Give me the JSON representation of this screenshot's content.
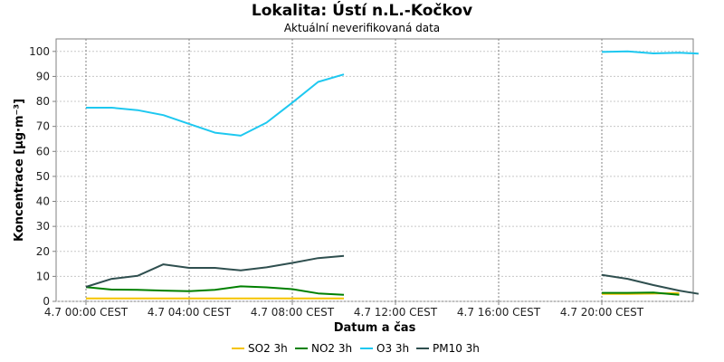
{
  "chart_data": {
    "type": "line",
    "title": "Lokalita: Ústí n.L.-Kočkov",
    "subtitle": "Aktuální neverifikovaná data",
    "xlabel": "Datum a čas",
    "ylabel": "Koncentrace [µg·m⁻³]",
    "ylim": [
      0,
      105
    ],
    "xlim": [
      -0.5,
      23.75
    ],
    "yticks": [
      0,
      10,
      20,
      30,
      40,
      50,
      60,
      70,
      80,
      90,
      100
    ],
    "xticks": [
      {
        "hour": 0,
        "label": "4.7 00:00 CEST"
      },
      {
        "hour": 4,
        "label": "4.7 04:00 CEST"
      },
      {
        "hour": 8,
        "label": "4.7 08:00 CEST"
      },
      {
        "hour": 12,
        "label": "4.7 12:00 CEST"
      },
      {
        "hour": 16,
        "label": "4.7 16:00 CEST"
      },
      {
        "hour": 20,
        "label": "4.7 20:00 CEST"
      }
    ],
    "grid": true,
    "legend_position": "bottom",
    "series": [
      {
        "name": "SO2 3h",
        "color": "#f5c400",
        "segments": [
          [
            [
              0,
              1.2
            ],
            [
              1,
              1.2
            ],
            [
              2,
              1.2
            ],
            [
              3,
              1.2
            ],
            [
              4,
              1.2
            ],
            [
              5,
              1.2
            ],
            [
              6,
              1.2
            ],
            [
              7,
              1.2
            ],
            [
              8,
              1.2
            ],
            [
              9,
              1.2
            ],
            [
              10,
              1.2
            ]
          ],
          [
            [
              20,
              3.0
            ],
            [
              21,
              3.0
            ],
            [
              22,
              3.1
            ],
            [
              23,
              3.3
            ]
          ]
        ]
      },
      {
        "name": "NO2 3h",
        "color": "#008000",
        "segments": [
          [
            [
              0,
              5.7
            ],
            [
              1,
              4.7
            ],
            [
              2,
              4.6
            ],
            [
              3,
              4.3
            ],
            [
              4,
              4.1
            ],
            [
              5,
              4.6
            ],
            [
              6,
              6.0
            ],
            [
              7,
              5.6
            ],
            [
              8,
              4.9
            ],
            [
              9,
              3.2
            ],
            [
              10,
              2.6
            ]
          ],
          [
            [
              20,
              3.4
            ],
            [
              21,
              3.4
            ],
            [
              22,
              3.5
            ],
            [
              23,
              2.6
            ]
          ]
        ]
      },
      {
        "name": "O3 3h",
        "color": "#1ec8f0",
        "segments": [
          [
            [
              0,
              77.5
            ],
            [
              1,
              77.5
            ],
            [
              2,
              76.5
            ],
            [
              3,
              74.5
            ],
            [
              4,
              71.0
            ],
            [
              5,
              67.5
            ],
            [
              6,
              66.3
            ],
            [
              7,
              71.5
            ],
            [
              8,
              79.5
            ],
            [
              9,
              87.8
            ],
            [
              10,
              90.8
            ]
          ],
          [
            [
              20,
              99.8
            ],
            [
              21,
              100.0
            ],
            [
              22,
              99.2
            ],
            [
              23,
              99.5
            ],
            [
              23.75,
              99.1
            ]
          ]
        ]
      },
      {
        "name": "PM10 3h",
        "color": "#2f4f4f",
        "segments": [
          [
            [
              0,
              5.8
            ],
            [
              1,
              9.0
            ],
            [
              2,
              10.2
            ],
            [
              3,
              14.8
            ],
            [
              4,
              13.4
            ],
            [
              5,
              13.4
            ],
            [
              6,
              12.4
            ],
            [
              7,
              13.6
            ],
            [
              8,
              15.4
            ],
            [
              9,
              17.3
            ],
            [
              10,
              18.2
            ]
          ],
          [
            [
              20,
              10.6
            ],
            [
              21,
              9.0
            ],
            [
              22,
              6.5
            ],
            [
              23,
              4.3
            ],
            [
              23.75,
              3.0
            ]
          ]
        ]
      }
    ]
  }
}
